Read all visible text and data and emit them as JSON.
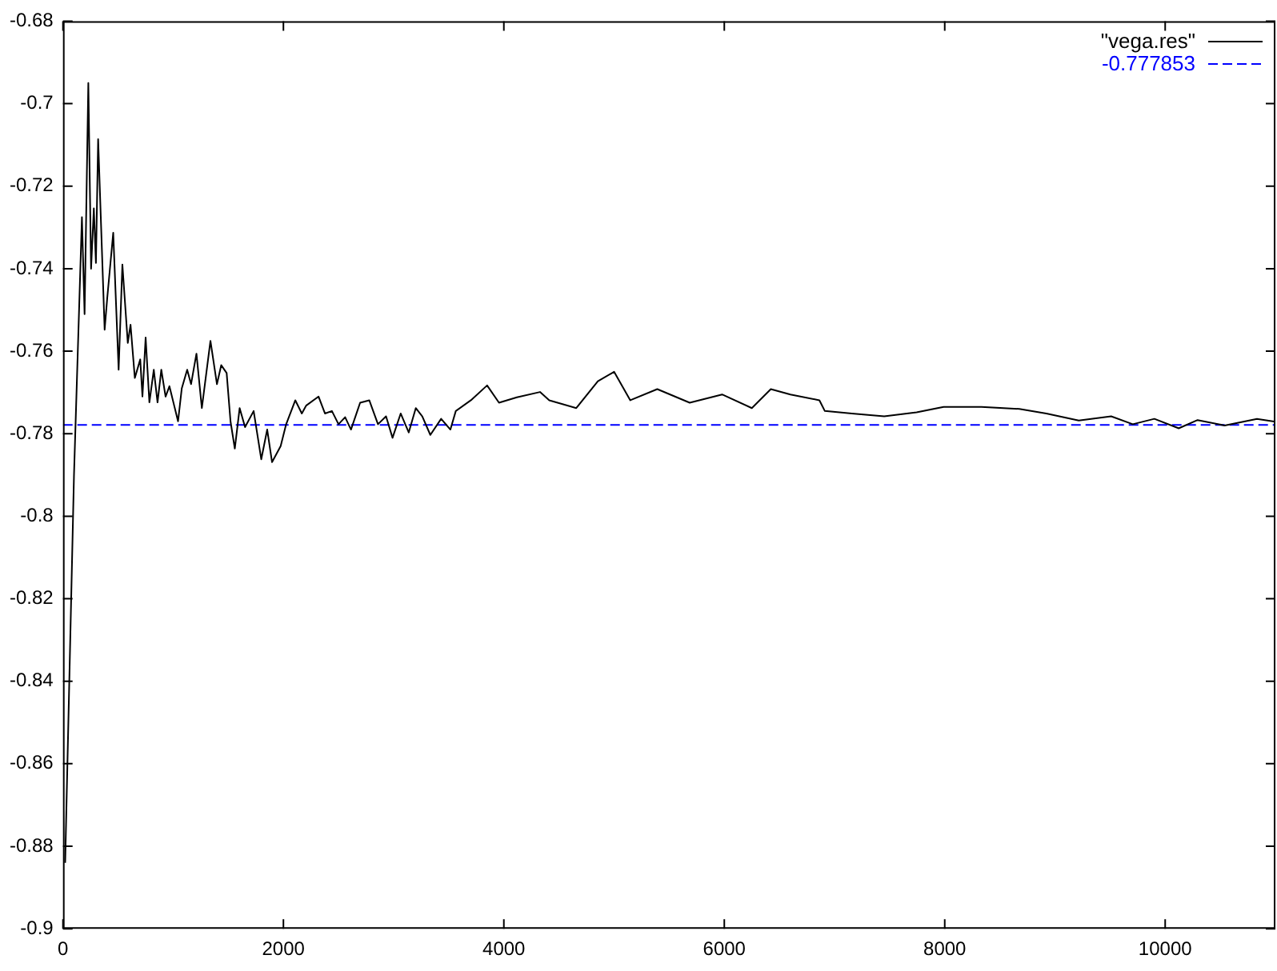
{
  "chart_data": {
    "type": "line",
    "xlim": [
      0,
      11000
    ],
    "ylim": [
      -0.9,
      -0.68
    ],
    "xticks": [
      0,
      2000,
      4000,
      6000,
      8000,
      10000
    ],
    "yticks": [
      -0.9,
      -0.88,
      -0.86,
      -0.84,
      -0.82,
      -0.8,
      -0.78,
      -0.76,
      -0.74,
      -0.72,
      -0.7,
      -0.68
    ],
    "grid": false,
    "legend": "top right",
    "marker": "none",
    "series": [
      {
        "name": "\"vega.res\"",
        "color": "#000000",
        "line_style": "solid",
        "x": [
          20,
          100,
          172,
          196,
          230,
          255,
          280,
          299,
          319,
          378,
          402,
          456,
          505,
          539,
          588,
          613,
          652,
          701,
          721,
          750,
          784,
          824,
          858,
          892,
          931,
          966,
          1044,
          1078,
          1127,
          1162,
          1211,
          1260,
          1338,
          1397,
          1436,
          1485,
          1520,
          1559,
          1603,
          1652,
          1730,
          1799,
          1853,
          1897,
          1975,
          2025,
          2108,
          2167,
          2206,
          2319,
          2377,
          2440,
          2500,
          2560,
          2613,
          2696,
          2779,
          2858,
          2931,
          2990,
          3064,
          3137,
          3201,
          3260,
          3333,
          3431,
          3515,
          3564,
          3701,
          3848,
          3956,
          4118,
          4328,
          4412,
          4657,
          4853,
          5000,
          5147,
          5392,
          5686,
          5980,
          6250,
          6422,
          6600,
          6863,
          6912,
          7157,
          7451,
          7745,
          7990,
          8333,
          8676,
          8922,
          9216,
          9510,
          9706,
          9902,
          10123,
          10294,
          10539,
          10833,
          11000
        ],
        "values": [
          -0.884,
          -0.79,
          -0.7275,
          -0.751,
          -0.695,
          -0.74,
          -0.7254,
          -0.7386,
          -0.7086,
          -0.7548,
          -0.747,
          -0.7313,
          -0.7645,
          -0.739,
          -0.758,
          -0.7536,
          -0.7665,
          -0.762,
          -0.771,
          -0.7567,
          -0.7724,
          -0.7645,
          -0.7724,
          -0.7645,
          -0.771,
          -0.7685,
          -0.777,
          -0.769,
          -0.7645,
          -0.768,
          -0.7606,
          -0.7738,
          -0.7575,
          -0.768,
          -0.7634,
          -0.7653,
          -0.777,
          -0.7836,
          -0.7738,
          -0.7784,
          -0.7745,
          -0.7862,
          -0.779,
          -0.7869,
          -0.783,
          -0.7777,
          -0.7719,
          -0.7751,
          -0.7732,
          -0.771,
          -0.7751,
          -0.7745,
          -0.7777,
          -0.776,
          -0.779,
          -0.7725,
          -0.7719,
          -0.7777,
          -0.7758,
          -0.781,
          -0.7751,
          -0.7797,
          -0.7738,
          -0.7758,
          -0.7803,
          -0.7764,
          -0.779,
          -0.7745,
          -0.7719,
          -0.7683,
          -0.7725,
          -0.7712,
          -0.7699,
          -0.7719,
          -0.7738,
          -0.7673,
          -0.765,
          -0.7719,
          -0.7692,
          -0.7725,
          -0.7705,
          -0.7738,
          -0.7692,
          -0.7705,
          -0.7719,
          -0.7745,
          -0.7751,
          -0.7758,
          -0.7748,
          -0.7735,
          -0.7735,
          -0.774,
          -0.7751,
          -0.7768,
          -0.7758,
          -0.7777,
          -0.7764,
          -0.7787,
          -0.7767,
          -0.778,
          -0.7764,
          -0.7771
        ]
      },
      {
        "name": "-0.777853",
        "color": "#0000ff",
        "line_style": "dashed",
        "x": [
          0,
          11000
        ],
        "values": [
          -0.777853,
          -0.777853
        ]
      }
    ]
  }
}
